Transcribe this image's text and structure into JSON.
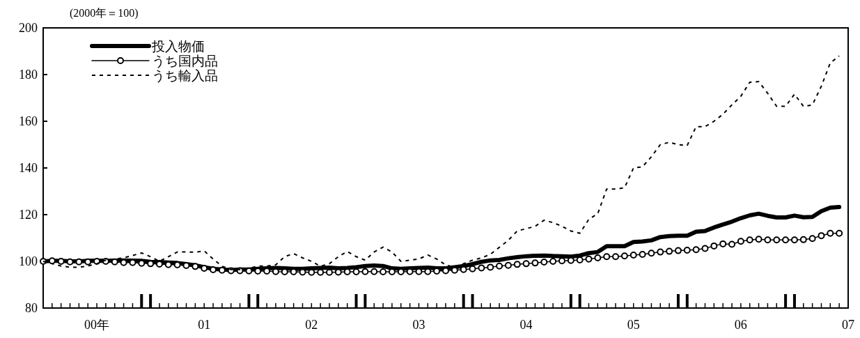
{
  "chart_data": {
    "type": "line",
    "ylabel": "(2000年＝100)",
    "x": [
      "2000-01",
      "2000-02",
      "2000-03",
      "2000-04",
      "2000-05",
      "2000-06",
      "2000-07",
      "2000-08",
      "2000-09",
      "2000-10",
      "2000-11",
      "2000-12",
      "2001-01",
      "2001-02",
      "2001-03",
      "2001-04",
      "2001-05",
      "2001-06",
      "2001-07",
      "2001-08",
      "2001-09",
      "2001-10",
      "2001-11",
      "2001-12",
      "2002-01",
      "2002-02",
      "2002-03",
      "2002-04",
      "2002-05",
      "2002-06",
      "2002-07",
      "2002-08",
      "2002-09",
      "2002-10",
      "2002-11",
      "2002-12",
      "2003-01",
      "2003-02",
      "2003-03",
      "2003-04",
      "2003-05",
      "2003-06",
      "2003-07",
      "2003-08",
      "2003-09",
      "2003-10",
      "2003-11",
      "2003-12",
      "2004-01",
      "2004-02",
      "2004-03",
      "2004-04",
      "2004-05",
      "2004-06",
      "2004-07",
      "2004-08",
      "2004-09",
      "2004-10",
      "2004-11",
      "2004-12",
      "2005-01",
      "2005-02",
      "2005-03",
      "2005-04",
      "2005-05",
      "2005-06",
      "2005-07",
      "2005-08",
      "2005-09",
      "2005-10",
      "2005-11",
      "2005-12",
      "2006-01",
      "2006-02",
      "2006-03",
      "2006-04",
      "2006-05",
      "2006-06",
      "2006-07",
      "2006-08",
      "2006-09",
      "2006-10",
      "2006-11",
      "2006-12",
      "2007-01",
      "2007-02",
      "2007-03",
      "2007-04",
      "2007-05",
      "2007-06"
    ],
    "series": [
      {
        "name": "投入物価",
        "color": "#000000",
        "marker": "none",
        "line_style": "solid",
        "values": [
          100,
          100.2,
          100.2,
          100,
          100,
          100.2,
          100.3,
          100.2,
          100.3,
          100.4,
          100.3,
          100.2,
          99.8,
          99.7,
          99.5,
          99.3,
          98.8,
          98.3,
          97.5,
          96.8,
          96.5,
          96.3,
          96.5,
          96.5,
          96.8,
          97,
          97.2,
          97,
          96.8,
          96.8,
          97,
          97.2,
          97.3,
          97,
          97.2,
          97.5,
          98,
          98.2,
          98,
          97,
          96.8,
          97,
          97.2,
          97.3,
          97,
          97,
          97.5,
          98,
          98.8,
          99.8,
          100.4,
          100.6,
          101.3,
          101.8,
          102.2,
          102.4,
          102.5,
          102.3,
          102.2,
          102,
          102.5,
          103.5,
          104,
          106.5,
          106.5,
          106.5,
          108.3,
          108.5,
          109,
          110.4,
          110.8,
          111,
          111,
          112.7,
          113,
          114.5,
          115.8,
          117,
          118.5,
          119.7,
          120.4,
          119.5,
          118.8,
          118.8,
          119.6,
          118.9,
          119,
          121.5,
          123,
          123.3
        ]
      },
      {
        "name": "うち国内品",
        "color": "#000000",
        "marker": "circle",
        "line_style": "solid",
        "values": [
          100,
          100.2,
          100,
          99.8,
          99.8,
          99.8,
          100,
          100,
          99.8,
          99.5,
          99.5,
          99.2,
          99,
          98.8,
          98.6,
          98.5,
          98.2,
          97.8,
          97,
          96.4,
          96.2,
          96,
          96,
          95.9,
          95.8,
          95.8,
          95.6,
          95.5,
          95.5,
          95.4,
          95.3,
          95.3,
          95.3,
          95.4,
          95.5,
          95.5,
          95.6,
          95.6,
          95.5,
          95.5,
          95.5,
          95.6,
          95.6,
          95.6,
          95.8,
          96,
          96.2,
          96.5,
          96.8,
          97.2,
          97.5,
          98,
          98.3,
          98.7,
          99,
          99.3,
          99.7,
          100,
          100.2,
          100.4,
          100.6,
          101,
          101.5,
          102,
          102,
          102.3,
          102.7,
          103,
          103.5,
          104,
          104.3,
          104.6,
          104.8,
          105,
          105.5,
          106.6,
          107.5,
          107.3,
          108.6,
          109.2,
          109.5,
          109.2,
          109.2,
          109.2,
          109.2,
          109.3,
          109.8,
          111,
          112,
          112
        ]
      },
      {
        "name": "うち輸入品",
        "color": "#000000",
        "marker": "none",
        "line_style": "dashed",
        "values": [
          100,
          99,
          98,
          97.5,
          97.5,
          98,
          99,
          100.5,
          101,
          101.5,
          102.5,
          103.6,
          102,
          100,
          102,
          104,
          104,
          103.9,
          104.5,
          101,
          97.9,
          96.5,
          96.5,
          97,
          98,
          98,
          98.5,
          102,
          103.3,
          101.5,
          100,
          97.9,
          99,
          102,
          104.2,
          102,
          100.5,
          104,
          106.1,
          104,
          100,
          100.5,
          101,
          102.7,
          101,
          98.5,
          97.5,
          99,
          100.5,
          101.5,
          103,
          106,
          109,
          113,
          114,
          115,
          117.6,
          116.6,
          115,
          113,
          112,
          118,
          120.4,
          131,
          131,
          131.5,
          140,
          140.5,
          144.8,
          150,
          151,
          150,
          149.6,
          157.7,
          157.7,
          160,
          163,
          167,
          170.7,
          176.7,
          177,
          172,
          166.4,
          166.4,
          171.6,
          166.4,
          167,
          175,
          185,
          188
        ]
      }
    ],
    "xlim": [
      "2000-01",
      "2007-07"
    ],
    "xticks": [
      {
        "value": "2000-02",
        "label": null
      },
      {
        "value": "2000-03",
        "label": null
      },
      {
        "value": "2000-04",
        "label": null
      },
      {
        "value": "2000-05",
        "label": null
      },
      {
        "value": "2000-06",
        "label": null
      },
      {
        "value": "2000-07",
        "label": "00年"
      },
      {
        "value": "2000-08",
        "label": null
      },
      {
        "value": "2000-09",
        "label": null
      },
      {
        "value": "2000-10",
        "label": null
      },
      {
        "value": "2000-11",
        "label": null
      },
      {
        "value": "2000-12",
        "label": null
      },
      {
        "value": "2001-01",
        "label": null
      },
      {
        "value": "2001-02",
        "label": null
      },
      {
        "value": "2001-03",
        "label": null
      },
      {
        "value": "2001-04",
        "label": null
      },
      {
        "value": "2001-05",
        "label": null
      },
      {
        "value": "2001-06",
        "label": null
      },
      {
        "value": "2001-07",
        "label": "01"
      },
      {
        "value": "2001-08",
        "label": null
      },
      {
        "value": "2001-09",
        "label": null
      },
      {
        "value": "2001-10",
        "label": null
      },
      {
        "value": "2001-11",
        "label": null
      },
      {
        "value": "2001-12",
        "label": null
      },
      {
        "value": "2002-01",
        "label": null
      },
      {
        "value": "2002-02",
        "label": null
      },
      {
        "value": "2002-03",
        "label": null
      },
      {
        "value": "2002-04",
        "label": null
      },
      {
        "value": "2002-05",
        "label": null
      },
      {
        "value": "2002-06",
        "label": null
      },
      {
        "value": "2002-07",
        "label": "02"
      },
      {
        "value": "2002-08",
        "label": null
      },
      {
        "value": "2002-09",
        "label": null
      },
      {
        "value": "2002-10",
        "label": null
      },
      {
        "value": "2002-11",
        "label": null
      },
      {
        "value": "2002-12",
        "label": null
      },
      {
        "value": "2003-01",
        "label": null
      },
      {
        "value": "2003-02",
        "label": null
      },
      {
        "value": "2003-03",
        "label": null
      },
      {
        "value": "2003-04",
        "label": null
      },
      {
        "value": "2003-05",
        "label": null
      },
      {
        "value": "2003-06",
        "label": null
      },
      {
        "value": "2003-07",
        "label": "03"
      },
      {
        "value": "2003-08",
        "label": null
      },
      {
        "value": "2003-09",
        "label": null
      },
      {
        "value": "2003-10",
        "label": null
      },
      {
        "value": "2003-11",
        "label": null
      },
      {
        "value": "2003-12",
        "label": null
      },
      {
        "value": "2004-01",
        "label": null
      },
      {
        "value": "2004-02",
        "label": null
      },
      {
        "value": "2004-03",
        "label": null
      },
      {
        "value": "2004-04",
        "label": null
      },
      {
        "value": "2004-05",
        "label": null
      },
      {
        "value": "2004-06",
        "label": null
      },
      {
        "value": "2004-07",
        "label": "04"
      },
      {
        "value": "2004-08",
        "label": null
      },
      {
        "value": "2004-09",
        "label": null
      },
      {
        "value": "2004-10",
        "label": null
      },
      {
        "value": "2004-11",
        "label": null
      },
      {
        "value": "2004-12",
        "label": null
      },
      {
        "value": "2005-01",
        "label": null
      },
      {
        "value": "2005-02",
        "label": null
      },
      {
        "value": "2005-03",
        "label": null
      },
      {
        "value": "2005-04",
        "label": null
      },
      {
        "value": "2005-05",
        "label": null
      },
      {
        "value": "2005-06",
        "label": null
      },
      {
        "value": "2005-07",
        "label": "05"
      },
      {
        "value": "2005-08",
        "label": null
      },
      {
        "value": "2005-09",
        "label": null
      },
      {
        "value": "2005-10",
        "label": null
      },
      {
        "value": "2005-11",
        "label": null
      },
      {
        "value": "2005-12",
        "label": null
      },
      {
        "value": "2006-01",
        "label": null
      },
      {
        "value": "2006-02",
        "label": null
      },
      {
        "value": "2006-03",
        "label": null
      },
      {
        "value": "2006-04",
        "label": null
      },
      {
        "value": "2006-05",
        "label": null
      },
      {
        "value": "2006-06",
        "label": null
      },
      {
        "value": "2006-07",
        "label": "06"
      },
      {
        "value": "2006-08",
        "label": null
      },
      {
        "value": "2006-09",
        "label": null
      },
      {
        "value": "2006-10",
        "label": null
      },
      {
        "value": "2006-11",
        "label": null
      },
      {
        "value": "2006-12",
        "label": null
      },
      {
        "value": "2007-01",
        "label": null
      },
      {
        "value": "2007-02",
        "label": null
      },
      {
        "value": "2007-03",
        "label": null
      },
      {
        "value": "2007-04",
        "label": null
      },
      {
        "value": "2007-05",
        "label": null
      },
      {
        "value": "2007-06",
        "label": null
      },
      {
        "value": "2007-07",
        "label": "07"
      }
    ],
    "ylim": [
      80,
      200
    ],
    "yticks": [
      80,
      100,
      120,
      140,
      160,
      180,
      200
    ],
    "grid": false,
    "legend": "top left"
  }
}
